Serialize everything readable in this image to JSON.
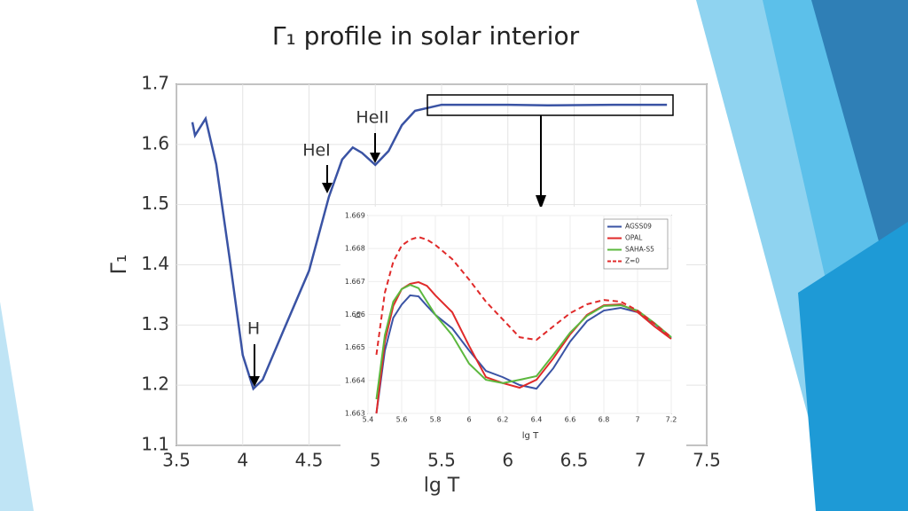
{
  "title": "Γ₁ profile in solar interior",
  "chart_data": [
    {
      "type": "line",
      "xlabel": "lg T",
      "ylabel": "Γ₁",
      "x": [
        3.62,
        3.64,
        3.72,
        3.8,
        3.9,
        4.0,
        4.08,
        4.15,
        4.3,
        4.5,
        4.65,
        4.75,
        4.83,
        4.9,
        5.0,
        5.1,
        5.2,
        5.3,
        5.5,
        6.0,
        6.3,
        6.8,
        7.2
      ],
      "series": [
        {
          "color": "#3a53a4",
          "values": [
            1.637,
            1.615,
            1.643,
            1.567,
            1.412,
            1.25,
            1.194,
            1.209,
            1.287,
            1.39,
            1.513,
            1.575,
            1.595,
            1.586,
            1.566,
            1.589,
            1.632,
            1.656,
            1.666,
            1.666,
            1.665,
            1.666,
            1.666
          ]
        }
      ],
      "annotations": [
        "H",
        "HeI",
        "HeII"
      ],
      "xlim": [
        3.5,
        7.5
      ],
      "xticks": [
        3.5,
        4,
        4.5,
        5,
        5.5,
        6,
        6.5,
        7,
        7.5
      ],
      "ylim": [
        1.1,
        1.7
      ],
      "yticks": [
        1.1,
        1.2,
        1.3,
        1.4,
        1.5,
        1.6,
        1.7
      ],
      "grid": true
    },
    {
      "type": "line",
      "xlabel": "lg T",
      "ylabel": "Γ₁",
      "x": [
        5.45,
        5.5,
        5.55,
        5.6,
        5.65,
        5.7,
        5.75,
        5.8,
        5.9,
        6.0,
        6.1,
        6.2,
        6.3,
        6.4,
        6.5,
        6.6,
        6.7,
        6.8,
        6.9,
        7.0,
        7.1,
        7.2
      ],
      "series": [
        {
          "name": "AGSS09",
          "color": "#3a53a4",
          "style": "solid",
          "values": [
            1.663,
            1.6649,
            1.6659,
            1.6663,
            1.66658,
            1.66655,
            1.66626,
            1.66599,
            1.66558,
            1.66491,
            1.66429,
            1.6641,
            1.66386,
            1.66375,
            1.66437,
            1.66518,
            1.6658,
            1.66612,
            1.6662,
            1.66607,
            1.66572,
            1.66529
          ]
        },
        {
          "name": "OPAL",
          "color": "#e02a2a",
          "style": "solid",
          "values": [
            1.663,
            1.66518,
            1.66626,
            1.66677,
            1.66693,
            1.66698,
            1.66687,
            1.66658,
            1.66607,
            1.66505,
            1.6641,
            1.66392,
            1.66378,
            1.66402,
            1.66467,
            1.6654,
            1.66599,
            1.66628,
            1.66631,
            1.66607,
            1.66564,
            1.66526
          ]
        },
        {
          "name": "SAHA-S5",
          "color": "#5cb83e",
          "style": "solid",
          "values": [
            1.66343,
            1.66537,
            1.66639,
            1.66677,
            1.6669,
            1.6668,
            1.66639,
            1.66599,
            1.66537,
            1.66451,
            1.66402,
            1.66392,
            1.66402,
            1.66413,
            1.66478,
            1.66545,
            1.66596,
            1.66626,
            1.66628,
            1.66612,
            1.66574,
            1.66531
          ]
        },
        {
          "name": "Z=0",
          "color": "#e02a2a",
          "style": "dashed",
          "values": [
            1.66478,
            1.66666,
            1.6676,
            1.66809,
            1.66827,
            1.66835,
            1.66827,
            1.66811,
            1.66768,
            1.66706,
            1.66639,
            1.66585,
            1.66531,
            1.66523,
            1.66564,
            1.66604,
            1.66631,
            1.66644,
            1.66639,
            1.66612,
            1.66572,
            1.66531
          ]
        }
      ],
      "xlim": [
        5.4,
        7.2
      ],
      "xticks": [
        5.4,
        5.6,
        5.8,
        6,
        6.2,
        6.4,
        6.6,
        6.8,
        7,
        7.2
      ],
      "ylim": [
        1.663,
        1.669
      ],
      "yticks": [
        1.663,
        1.664,
        1.665,
        1.666,
        1.667,
        1.668,
        1.669
      ],
      "grid": true,
      "legend": "upper right"
    }
  ]
}
